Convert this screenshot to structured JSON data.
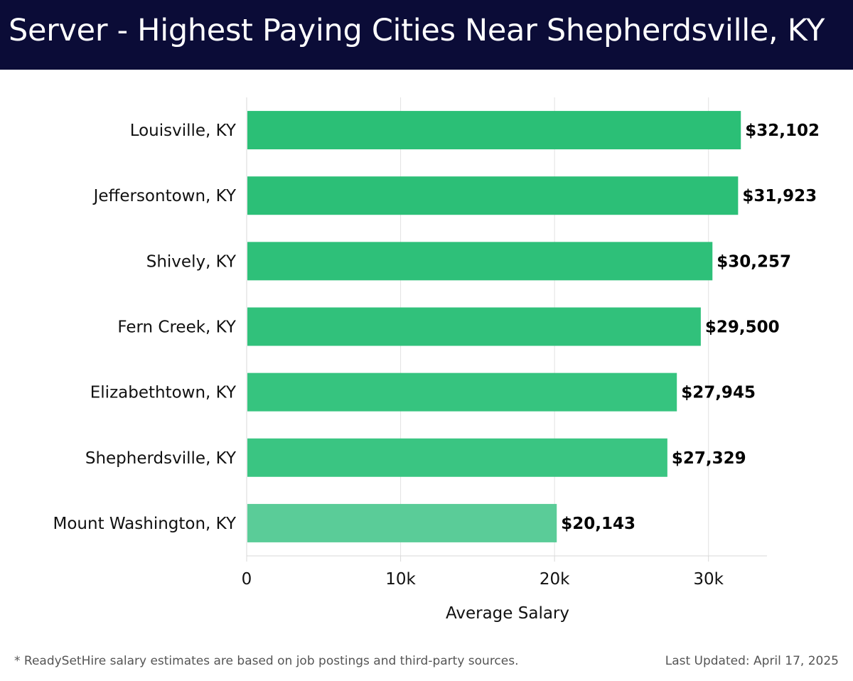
{
  "header": {
    "title": "Server - Highest Paying Cities Near Shepherdsville, KY"
  },
  "chart_data": {
    "type": "bar",
    "orientation": "horizontal",
    "title": "Server - Highest Paying Cities Near Shepherdsville, KY",
    "xlabel": "Average Salary",
    "ylabel": "",
    "categories": [
      "Louisville, KY",
      "Jeffersontown, KY",
      "Shively, KY",
      "Fern Creek, KY",
      "Elizabethtown, KY",
      "Shepherdsville, KY",
      "Mount Washington, KY"
    ],
    "values": [
      32102,
      31923,
      30257,
      29500,
      27945,
      27329,
      20143
    ],
    "value_labels": [
      "$32,102",
      "$31,923",
      "$30,257",
      "$29,500",
      "$27,945",
      "$27,329",
      "$20,143"
    ],
    "xticks": [
      0,
      10000,
      20000,
      30000
    ],
    "xtick_labels": [
      "0",
      "10k",
      "20k",
      "30k"
    ],
    "xlim": [
      0,
      33800
    ],
    "grid": "vertical",
    "colors": [
      "#2bbf76",
      "#2cbf77",
      "#2ec079",
      "#31c17b",
      "#36c47f",
      "#3ac582",
      "#5acc98"
    ]
  },
  "footer": {
    "note": "* ReadySetHire salary estimates are based on job postings and third-party sources.",
    "updated": "Last Updated: April 17, 2025"
  }
}
